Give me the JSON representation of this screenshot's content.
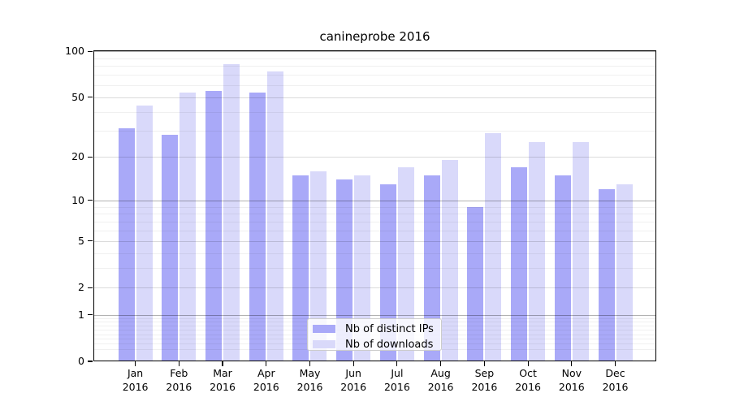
{
  "chart_data": {
    "type": "bar",
    "title": "canineprobe 2016",
    "categories": [
      "Jan",
      "Feb",
      "Mar",
      "Apr",
      "May",
      "Jun",
      "Jul",
      "Aug",
      "Sep",
      "Oct",
      "Nov",
      "Dec"
    ],
    "x_tick_second_line": "2016",
    "series": [
      {
        "name": "Nb of distinct IPs",
        "color": "#a9a9f8",
        "values": [
          31,
          28,
          55,
          54,
          15,
          14,
          13,
          15,
          9,
          17,
          15,
          12
        ]
      },
      {
        "name": "Nb of downloads",
        "color": "#d9d9fa",
        "values": [
          44,
          54,
          82,
          74,
          16,
          15,
          17,
          19,
          29,
          25,
          25,
          13
        ]
      }
    ],
    "yscale": "log10(1+x)",
    "ylim": [
      0,
      100
    ],
    "ytick_labels": [
      100,
      50,
      20,
      10,
      5,
      2,
      1,
      0
    ],
    "grid": "on",
    "legend_position": "lower center"
  },
  "legend": {
    "items": [
      {
        "label": "Nb of distinct IPs",
        "series_index": 0
      },
      {
        "label": "Nb of downloads",
        "series_index": 1
      }
    ]
  }
}
